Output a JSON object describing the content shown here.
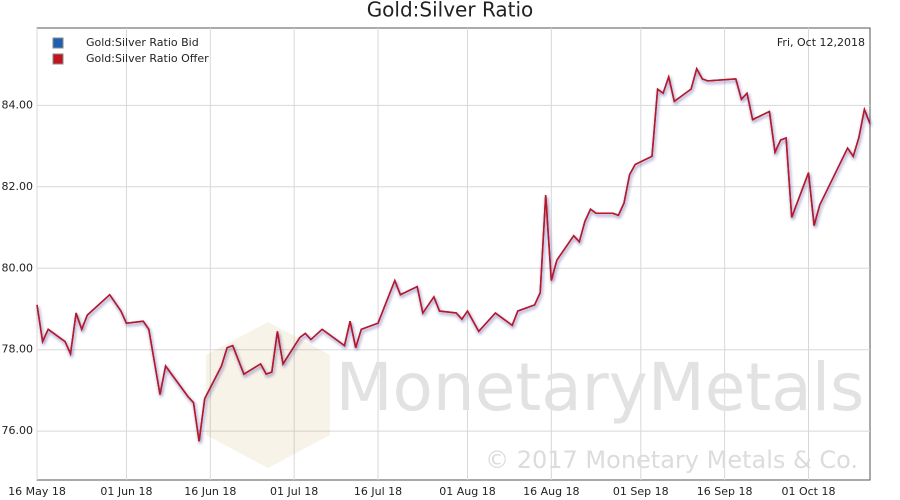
{
  "chart_data": {
    "type": "line",
    "title": "Gold:Silver Ratio",
    "annotation": "Fri, Oct 12,2018",
    "watermark": "MonetaryMetals",
    "copyright": "© 2017 Monetary Metals & Co.",
    "x": [
      "2018-05-16",
      "2018-05-17",
      "2018-05-18",
      "2018-05-20",
      "2018-05-21",
      "2018-05-22",
      "2018-05-23",
      "2018-05-24",
      "2018-05-25",
      "2018-05-29",
      "2018-05-31",
      "2018-06-01",
      "2018-06-04",
      "2018-06-05",
      "2018-06-07",
      "2018-06-08",
      "2018-06-12",
      "2018-06-13",
      "2018-06-14",
      "2018-06-15",
      "2018-06-18",
      "2018-06-19",
      "2018-06-20",
      "2018-06-22",
      "2018-06-25",
      "2018-06-26",
      "2018-06-27",
      "2018-06-28",
      "2018-06-29",
      "2018-07-02",
      "2018-07-03",
      "2018-07-04",
      "2018-07-06",
      "2018-07-10",
      "2018-07-11",
      "2018-07-12",
      "2018-07-13",
      "2018-07-16",
      "2018-07-19",
      "2018-07-20",
      "2018-07-23",
      "2018-07-24",
      "2018-07-26",
      "2018-07-27",
      "2018-07-30",
      "2018-07-31",
      "2018-08-01",
      "2018-08-03",
      "2018-08-06",
      "2018-08-09",
      "2018-08-10",
      "2018-08-13",
      "2018-08-14",
      "2018-08-15",
      "2018-08-16",
      "2018-08-17",
      "2018-08-20",
      "2018-08-21",
      "2018-08-22",
      "2018-08-23",
      "2018-08-24",
      "2018-08-27",
      "2018-08-28",
      "2018-08-29",
      "2018-08-30",
      "2018-08-31",
      "2018-09-03",
      "2018-09-04",
      "2018-09-05",
      "2018-09-06",
      "2018-09-07",
      "2018-09-10",
      "2018-09-11",
      "2018-09-12",
      "2018-09-13",
      "2018-09-18",
      "2018-09-19",
      "2018-09-20",
      "2018-09-21",
      "2018-09-24",
      "2018-09-25",
      "2018-09-26",
      "2018-09-27",
      "2018-09-28",
      "2018-10-01",
      "2018-10-02",
      "2018-10-03",
      "2018-10-08",
      "2018-10-09",
      "2018-10-10",
      "2018-10-11",
      "2018-10-12"
    ],
    "series": [
      {
        "name": "Gold:Silver Ratio Bid",
        "color": "#1f5fb0",
        "values": [
          79.1,
          78.2,
          78.5,
          78.3,
          78.2,
          77.9,
          78.9,
          78.5,
          78.85,
          79.35,
          78.95,
          78.65,
          78.7,
          78.5,
          76.9,
          77.6,
          76.85,
          76.7,
          75.75,
          76.8,
          77.6,
          78.05,
          78.1,
          77.4,
          77.65,
          77.4,
          77.45,
          78.45,
          77.65,
          78.3,
          78.4,
          78.25,
          78.5,
          78.1,
          78.7,
          78.05,
          78.5,
          78.65,
          79.7,
          79.35,
          79.55,
          78.9,
          79.3,
          78.95,
          78.9,
          78.75,
          78.95,
          78.45,
          78.9,
          78.6,
          78.95,
          79.1,
          79.4,
          81.8,
          79.7,
          80.2,
          80.8,
          80.65,
          81.15,
          81.45,
          81.35,
          81.35,
          81.3,
          81.6,
          82.3,
          82.55,
          82.75,
          84.4,
          84.3,
          84.7,
          84.1,
          84.4,
          84.9,
          84.65,
          84.6,
          84.65,
          84.15,
          84.3,
          83.65,
          83.85,
          82.85,
          83.15,
          83.2,
          81.25,
          82.35,
          81.05,
          81.55,
          82.95,
          82.75,
          83.2,
          83.9,
          83.55
        ]
      },
      {
        "name": "Gold:Silver Ratio Offer",
        "color": "#c0141e",
        "values": [
          79.1,
          78.2,
          78.5,
          78.3,
          78.2,
          77.9,
          78.9,
          78.5,
          78.85,
          79.35,
          78.95,
          78.65,
          78.7,
          78.5,
          76.9,
          77.6,
          76.85,
          76.7,
          75.75,
          76.8,
          77.6,
          78.05,
          78.1,
          77.4,
          77.65,
          77.4,
          77.45,
          78.45,
          77.65,
          78.3,
          78.4,
          78.25,
          78.5,
          78.1,
          78.7,
          78.05,
          78.5,
          78.65,
          79.7,
          79.35,
          79.55,
          78.9,
          79.3,
          78.95,
          78.9,
          78.75,
          78.95,
          78.45,
          78.9,
          78.6,
          78.95,
          79.1,
          79.4,
          81.8,
          79.7,
          80.2,
          80.8,
          80.65,
          81.15,
          81.45,
          81.35,
          81.35,
          81.3,
          81.6,
          82.3,
          82.55,
          82.75,
          84.4,
          84.3,
          84.7,
          84.1,
          84.4,
          84.9,
          84.65,
          84.6,
          84.65,
          84.15,
          84.3,
          83.65,
          83.85,
          82.85,
          83.15,
          83.2,
          81.25,
          82.35,
          81.05,
          81.55,
          82.95,
          82.75,
          83.2,
          83.9,
          83.55
        ]
      }
    ],
    "xlim": [
      "2018-05-16",
      "2018-10-12"
    ],
    "xticks": [
      {
        "value": "2018-05-16",
        "label": "16 May 18"
      },
      {
        "value": "2018-06-01",
        "label": "01 Jun 18"
      },
      {
        "value": "2018-06-16",
        "label": "16 Jun 18"
      },
      {
        "value": "2018-07-01",
        "label": "01 Jul 18"
      },
      {
        "value": "2018-07-16",
        "label": "16 Jul 18"
      },
      {
        "value": "2018-08-01",
        "label": "01 Aug 18"
      },
      {
        "value": "2018-08-16",
        "label": "16 Aug 18"
      },
      {
        "value": "2018-09-01",
        "label": "01 Sep 18"
      },
      {
        "value": "2018-09-16",
        "label": "16 Sep 18"
      },
      {
        "value": "2018-10-01",
        "label": "01 Oct 18"
      }
    ],
    "ylim": [
      74.8,
      85.9
    ],
    "yticks": [
      {
        "value": 76,
        "label": "76.00"
      },
      {
        "value": 78,
        "label": "78.00"
      },
      {
        "value": 80,
        "label": "80.00"
      },
      {
        "value": 82,
        "label": "82.00"
      },
      {
        "value": 84,
        "label": "84.00"
      }
    ],
    "grid": true,
    "legend": "top-left"
  }
}
